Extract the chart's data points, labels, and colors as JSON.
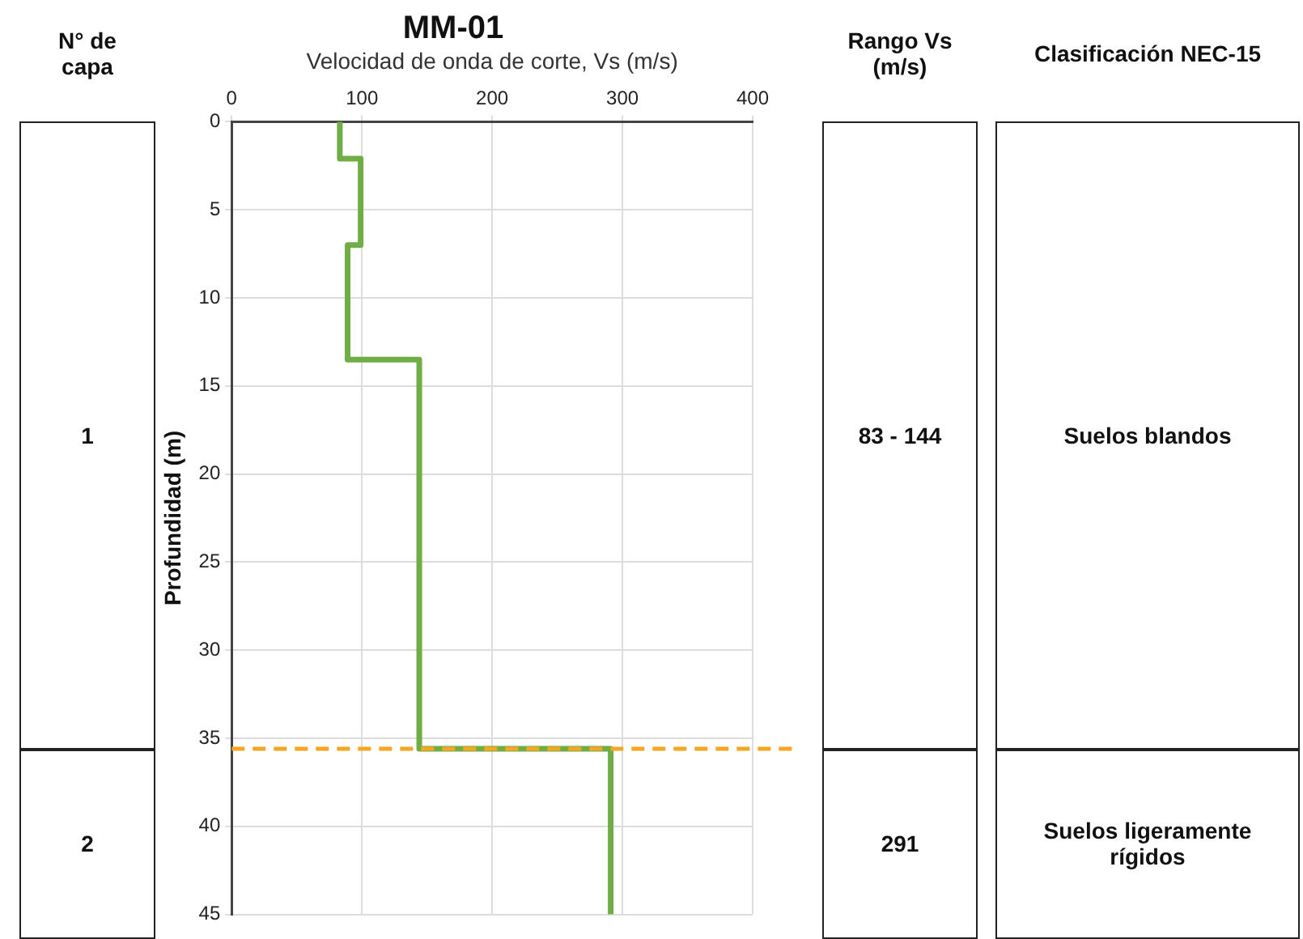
{
  "chart_data": {
    "type": "line",
    "title": "MM-01",
    "xlabel": "Velocidad de onda de corte, Vs (m/s)",
    "ylabel": "Profundidad (m)",
    "series": [
      {
        "color": "#70ad47",
        "x": [
          83,
          83,
          99,
          99,
          89,
          89,
          144,
          144,
          291,
          291
        ],
        "values": [
          0,
          2.1,
          2.1,
          7,
          7,
          13.5,
          13.5,
          35.6,
          35.6,
          45
        ]
      }
    ],
    "xlim": [
      0,
      400
    ],
    "xticks": [
      0,
      100,
      200,
      300,
      400
    ],
    "ylim": [
      45,
      0
    ],
    "yticks": [
      0,
      5,
      10,
      15,
      20,
      25,
      30,
      35,
      40,
      45
    ],
    "grid": true,
    "marker": "none",
    "line_style": "solid",
    "ref_lines": [
      {
        "axis": "y",
        "value": 35.6,
        "color": "#f5a623",
        "line_style": "dashed"
      }
    ],
    "annotations": [
      "N° de capa",
      "Rango Vs (m/s)",
      "Clasificación NEC-15",
      "1",
      "83 - 144",
      "Suelos blandos",
      "2",
      "291",
      "Suelos ligeramente rígidos"
    ]
  }
}
